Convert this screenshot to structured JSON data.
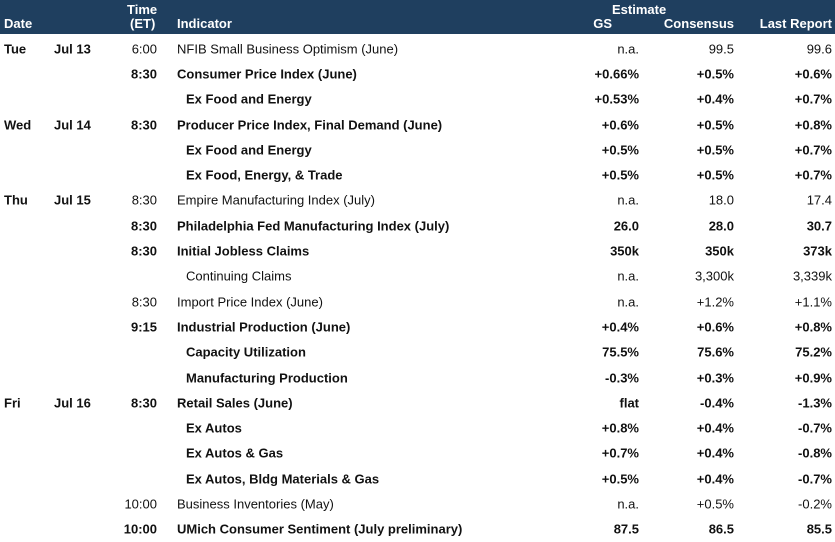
{
  "header": {
    "date": "Date",
    "time_line1": "Time",
    "time_line2": "(ET)",
    "indicator": "Indicator",
    "estimate": "Estimate",
    "gs": "GS",
    "consensus": "Consensus",
    "last_report": "Last Report"
  },
  "rows": [
    {
      "day": "Tue",
      "date": "Jul 13",
      "time": "6:00",
      "indicator": "NFIB Small Business Optimism (June)",
      "gs": "n.a.",
      "consensus": "99.5",
      "last": "99.6",
      "bold": false,
      "sub": false
    },
    {
      "day": "",
      "date": "",
      "time": "8:30",
      "indicator": "Consumer Price Index (June)",
      "gs": "+0.66%",
      "consensus": "+0.5%",
      "last": "+0.6%",
      "bold": true,
      "sub": false
    },
    {
      "day": "",
      "date": "",
      "time": "",
      "indicator": "Ex Food and Energy",
      "gs": "+0.53%",
      "consensus": "+0.4%",
      "last": "+0.7%",
      "bold": true,
      "sub": true
    },
    {
      "day": "Wed",
      "date": "Jul 14",
      "time": "8:30",
      "indicator": "Producer Price Index, Final Demand (June)",
      "gs": "+0.6%",
      "consensus": "+0.5%",
      "last": "+0.8%",
      "bold": true,
      "sub": false
    },
    {
      "day": "",
      "date": "",
      "time": "",
      "indicator": "Ex Food and Energy",
      "gs": "+0.5%",
      "consensus": "+0.5%",
      "last": "+0.7%",
      "bold": true,
      "sub": true
    },
    {
      "day": "",
      "date": "",
      "time": "",
      "indicator": "Ex Food, Energy, & Trade",
      "gs": "+0.5%",
      "consensus": "+0.5%",
      "last": "+0.7%",
      "bold": true,
      "sub": true
    },
    {
      "day": "Thu",
      "date": "Jul 15",
      "time": "8:30",
      "indicator": "Empire Manufacturing Index (July)",
      "gs": "n.a.",
      "consensus": "18.0",
      "last": "17.4",
      "bold": false,
      "sub": false
    },
    {
      "day": "",
      "date": "",
      "time": "8:30",
      "indicator": "Philadelphia Fed Manufacturing Index (July)",
      "gs": "26.0",
      "consensus": "28.0",
      "last": "30.7",
      "bold": true,
      "sub": false
    },
    {
      "day": "",
      "date": "",
      "time": "8:30",
      "indicator": "Initial Jobless Claims",
      "gs": "350k",
      "consensus": "350k",
      "last": "373k",
      "bold": true,
      "sub": false
    },
    {
      "day": "",
      "date": "",
      "time": "",
      "indicator": "Continuing Claims",
      "gs": "n.a.",
      "consensus": "3,300k",
      "last": "3,339k",
      "bold": false,
      "sub": true
    },
    {
      "day": "",
      "date": "",
      "time": "8:30",
      "indicator": "Import Price Index (June)",
      "gs": "n.a.",
      "consensus": "+1.2%",
      "last": "+1.1%",
      "bold": false,
      "sub": false
    },
    {
      "day": "",
      "date": "",
      "time": "9:15",
      "indicator": "Industrial Production (June)",
      "gs": "+0.4%",
      "consensus": "+0.6%",
      "last": "+0.8%",
      "bold": true,
      "sub": false
    },
    {
      "day": "",
      "date": "",
      "time": "",
      "indicator": "Capacity Utilization",
      "gs": "75.5%",
      "consensus": "75.6%",
      "last": "75.2%",
      "bold": true,
      "sub": true
    },
    {
      "day": "",
      "date": "",
      "time": "",
      "indicator": "Manufacturing Production",
      "gs": "-0.3%",
      "consensus": "+0.3%",
      "last": "+0.9%",
      "bold": true,
      "sub": true
    },
    {
      "day": "Fri",
      "date": "Jul 16",
      "time": "8:30",
      "indicator": "Retail Sales (June)",
      "gs": "flat",
      "consensus": "-0.4%",
      "last": "-1.3%",
      "bold": true,
      "sub": false
    },
    {
      "day": "",
      "date": "",
      "time": "",
      "indicator": "Ex Autos",
      "gs": "+0.8%",
      "consensus": "+0.4%",
      "last": "-0.7%",
      "bold": true,
      "sub": true
    },
    {
      "day": "",
      "date": "",
      "time": "",
      "indicator": "Ex Autos & Gas",
      "gs": "+0.7%",
      "consensus": "+0.4%",
      "last": "-0.8%",
      "bold": true,
      "sub": true
    },
    {
      "day": "",
      "date": "",
      "time": "",
      "indicator": "Ex Autos, Bldg Materials & Gas",
      "gs": "+0.5%",
      "consensus": "+0.4%",
      "last": "-0.7%",
      "bold": true,
      "sub": true
    },
    {
      "day": "",
      "date": "",
      "time": "10:00",
      "indicator": "Business Inventories (May)",
      "gs": "n.a.",
      "consensus": "+0.5%",
      "last": "-0.2%",
      "bold": false,
      "sub": false
    },
    {
      "day": "",
      "date": "",
      "time": "10:00",
      "indicator": "UMich Consumer Sentiment (July preliminary)",
      "gs": "87.5",
      "consensus": "86.5",
      "last": "85.5",
      "bold": true,
      "sub": false
    }
  ]
}
